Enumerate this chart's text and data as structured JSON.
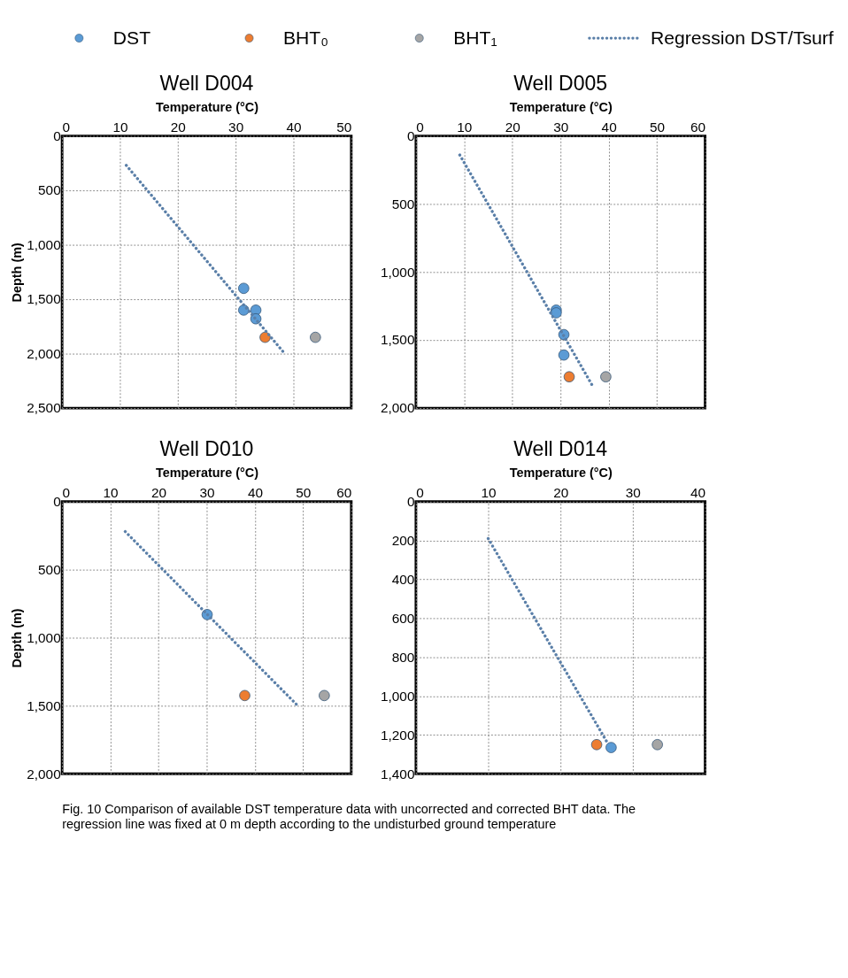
{
  "chart_data": [
    {
      "type": "scatter",
      "title": "Well D004",
      "xlabel": "Temperature (°C)",
      "ylabel": "Depth  (m)",
      "xlim": [
        0,
        50
      ],
      "xticks": [
        0,
        10,
        20,
        30,
        40,
        50
      ],
      "ylim": [
        2500,
        0
      ],
      "yticks": [
        0,
        500,
        {
          "value": 1000,
          "label": "1,000"
        },
        {
          "value": 1500,
          "label": "1,500"
        },
        {
          "value": 2000,
          "label": "2,000"
        },
        {
          "value": 2500,
          "label": "2,500"
        }
      ],
      "grid": true,
      "legend": "top",
      "annotations": [
        "Fig. 10 Comparison of available DST temperature data with uncorrected and corrected BHT data. The regression line was fixed at 0 m depth according to the undisturbed ground temperature"
      ],
      "series": [
        {
          "name": "DST",
          "color": "#5b9bd5",
          "marker": "circle",
          "x": [
            31.4,
            31.4,
            33.5,
            33.5
          ],
          "values": [
            1400,
            1600,
            1600,
            1680
          ]
        },
        {
          "name": "BHT₀",
          "color": "#ed7d31",
          "marker": "circle",
          "x": [
            35.1
          ],
          "values": [
            1850
          ]
        },
        {
          "name": "BHT₁",
          "color": "#a5a5a5",
          "marker": "circle",
          "x": [
            43.8
          ],
          "values": [
            1850
          ]
        },
        {
          "name": "Regression  DST/Tsurf",
          "type": "line",
          "line_style": "dotted",
          "color": "#5a7fa8",
          "x": [
            11.1,
            38.5
          ],
          "values": [
            270,
            2000
          ]
        }
      ]
    },
    {
      "type": "scatter",
      "title": "Well D005",
      "xlabel": "Temperature (°C)",
      "xlim": [
        0,
        60
      ],
      "xticks": [
        0,
        10,
        20,
        30,
        40,
        50,
        60
      ],
      "ylim": [
        2000,
        0
      ],
      "yticks": [
        0,
        500,
        {
          "value": 1000,
          "label": "1,000"
        },
        {
          "value": 1500,
          "label": "1,500"
        },
        {
          "value": 2000,
          "label": "2,000"
        }
      ],
      "grid": true,
      "series": [
        {
          "color": "#5b9bd5",
          "marker": "circle",
          "x": [
            29.1,
            29.1,
            30.7,
            30.7
          ],
          "values": [
            1280,
            1300,
            1460,
            1610
          ]
        },
        {
          "color": "#ed7d31",
          "marker": "circle",
          "x": [
            31.8
          ],
          "values": [
            1770
          ]
        },
        {
          "color": "#a5a5a5",
          "marker": "circle",
          "x": [
            39.4
          ],
          "values": [
            1770
          ]
        },
        {
          "type": "line",
          "line_style": "dotted",
          "color": "#5a7fa8",
          "x": [
            9.1,
            36.7
          ],
          "values": [
            140,
            1840
          ]
        }
      ]
    },
    {
      "type": "scatter",
      "title": "Well D010",
      "xlabel": "Temperature (°C)",
      "ylabel": "Depth  (m)",
      "xlim": [
        0,
        60
      ],
      "xticks": [
        0,
        10,
        20,
        30,
        40,
        50,
        60
      ],
      "ylim": [
        2000,
        0
      ],
      "yticks": [
        0,
        500,
        {
          "value": 1000,
          "label": "1,000"
        },
        {
          "value": 1500,
          "label": "1,500"
        },
        {
          "value": 2000,
          "label": "2,000"
        }
      ],
      "grid": true,
      "series": [
        {
          "color": "#5b9bd5",
          "marker": "circle",
          "x": [
            30.1
          ],
          "values": [
            830
          ]
        },
        {
          "color": "#ed7d31",
          "marker": "circle",
          "x": [
            37.9
          ],
          "values": [
            1425
          ]
        },
        {
          "color": "#a5a5a5",
          "marker": "circle",
          "x": [
            54.4
          ],
          "values": [
            1425
          ]
        },
        {
          "type": "line",
          "line_style": "dotted",
          "color": "#5a7fa8",
          "x": [
            13.1,
            48.9
          ],
          "values": [
            220,
            1500
          ]
        }
      ]
    },
    {
      "type": "scatter",
      "title": "Well D014",
      "xlabel": "Temperature (°C)",
      "xlim": [
        0,
        40
      ],
      "xticks": [
        0,
        10,
        20,
        30,
        40
      ],
      "ylim": [
        1400,
        0
      ],
      "yticks": [
        0,
        200,
        400,
        600,
        800,
        {
          "value": 1000,
          "label": "1,000"
        },
        {
          "value": 1200,
          "label": "1,200"
        },
        {
          "value": 1400,
          "label": "1,400"
        }
      ],
      "grid": true,
      "series": [
        {
          "color": "#5b9bd5",
          "marker": "circle",
          "x": [
            27.0
          ],
          "values": [
            1265
          ]
        },
        {
          "color": "#ed7d31",
          "marker": "circle",
          "x": [
            25.0
          ],
          "values": [
            1250
          ]
        },
        {
          "color": "#a5a5a5",
          "marker": "circle",
          "x": [
            33.4
          ],
          "values": [
            1250
          ]
        },
        {
          "type": "line",
          "line_style": "dotted",
          "color": "#5a7fa8",
          "x": [
            10.0,
            26.4
          ],
          "values": [
            190,
            1235
          ]
        }
      ]
    }
  ]
}
